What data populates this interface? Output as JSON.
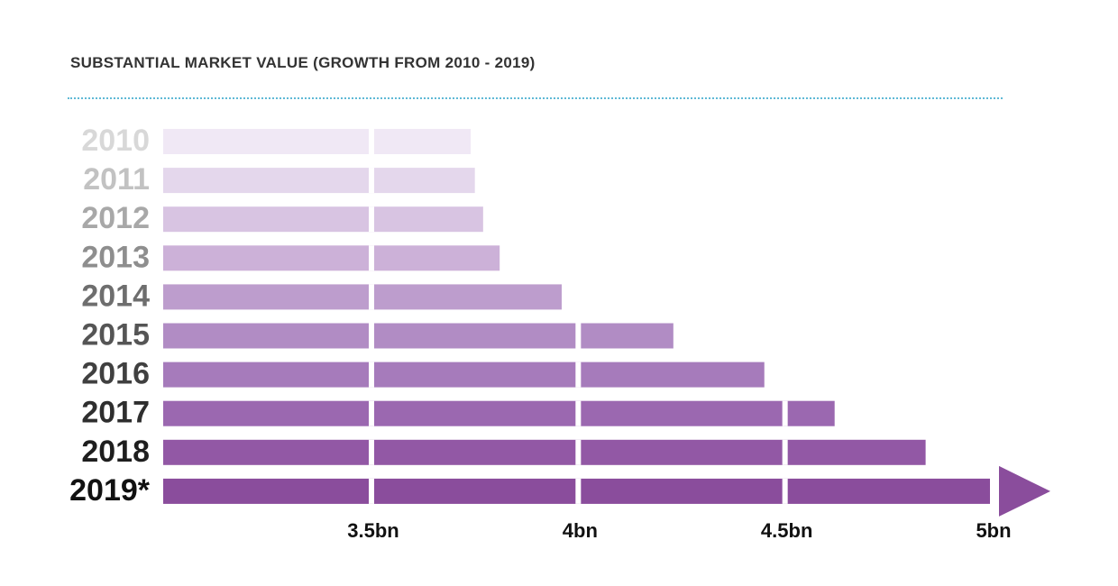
{
  "chart_data": {
    "type": "bar",
    "orientation": "horizontal",
    "title": "SUBSTANTIAL MARKET VALUE (GROWTH FROM 2010 - 2019)",
    "categories": [
      "2010",
      "2011",
      "2012",
      "2013",
      "2014",
      "2015",
      "2016",
      "2017",
      "2018",
      "2019*"
    ],
    "values": [
      3.74,
      3.75,
      3.77,
      3.81,
      3.96,
      4.23,
      4.45,
      4.62,
      4.84,
      5.0
    ],
    "x_ticks": [
      {
        "value": 3.5,
        "label": "3.5bn"
      },
      {
        "value": 4.0,
        "label": "4bn"
      },
      {
        "value": 4.5,
        "label": "4.5bn"
      },
      {
        "value": 5.0,
        "label": "5bn"
      }
    ],
    "xlim": [
      3.0,
      5.0
    ],
    "last_bar_arrow": true,
    "grid": false,
    "colors": {
      "bars": [
        "#f0e8f5",
        "#e4d7ec",
        "#d8c4e2",
        "#ccb1d8",
        "#bd9dcd",
        "#b18cc4",
        "#a67bbb",
        "#9b68b0",
        "#9258a5",
        "#8a4d9c"
      ],
      "labels": [
        "#d8d8d8",
        "#c2c2c2",
        "#a8a8a8",
        "#8e8e8e",
        "#6e6e6e",
        "#555555",
        "#404040",
        "#2e2e2e",
        "#1e1e1e",
        "#111111"
      ],
      "divider": "#5fb9d6",
      "title": "#333333"
    }
  }
}
